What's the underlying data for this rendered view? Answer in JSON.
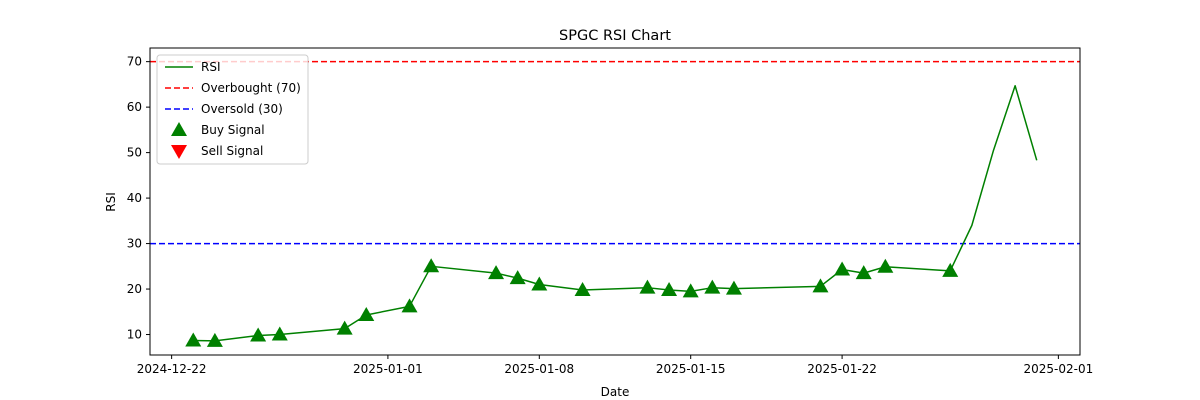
{
  "chart_data": {
    "type": "line",
    "title": "SPGC RSI Chart",
    "xlabel": "Date",
    "ylabel": "RSI",
    "xlim": [
      "2024-12-21",
      "2025-02-02"
    ],
    "ylim": [
      5.5,
      73
    ],
    "x_ticks": [
      "2024-12-22",
      "2025-01-01",
      "2025-01-08",
      "2025-01-15",
      "2025-01-22",
      "2025-02-01"
    ],
    "y_ticks": [
      10,
      20,
      30,
      40,
      50,
      60,
      70
    ],
    "grid": false,
    "legend_position": "top-left",
    "series": [
      {
        "name": "RSI",
        "kind": "line",
        "color": "#008000",
        "points": [
          {
            "date": "2024-12-23",
            "value": 8.7
          },
          {
            "date": "2024-12-24",
            "value": 8.6
          },
          {
            "date": "2024-12-26",
            "value": 9.8
          },
          {
            "date": "2024-12-27",
            "value": 10.0
          },
          {
            "date": "2024-12-30",
            "value": 11.3
          },
          {
            "date": "2024-12-31",
            "value": 14.3
          },
          {
            "date": "2025-01-02",
            "value": 16.2
          },
          {
            "date": "2025-01-03",
            "value": 25.0
          },
          {
            "date": "2025-01-06",
            "value": 23.5
          },
          {
            "date": "2025-01-07",
            "value": 22.4
          },
          {
            "date": "2025-01-08",
            "value": 21.0
          },
          {
            "date": "2025-01-10",
            "value": 19.8
          },
          {
            "date": "2025-01-13",
            "value": 20.3
          },
          {
            "date": "2025-01-14",
            "value": 19.8
          },
          {
            "date": "2025-01-15",
            "value": 19.5
          },
          {
            "date": "2025-01-16",
            "value": 20.3
          },
          {
            "date": "2025-01-17",
            "value": 20.1
          },
          {
            "date": "2025-01-21",
            "value": 20.6
          },
          {
            "date": "2025-01-22",
            "value": 24.3
          },
          {
            "date": "2025-01-23",
            "value": 23.5
          },
          {
            "date": "2025-01-24",
            "value": 24.9
          },
          {
            "date": "2025-01-27",
            "value": 24.0
          },
          {
            "date": "2025-01-28",
            "value": 34.0
          },
          {
            "date": "2025-01-29",
            "value": 50.5
          },
          {
            "date": "2025-01-30",
            "value": 64.7
          },
          {
            "date": "2025-01-31",
            "value": 48.3
          }
        ]
      },
      {
        "name": "Overbought (70)",
        "kind": "hline",
        "value": 70,
        "color": "#ff0000"
      },
      {
        "name": "Oversold (30)",
        "kind": "hline",
        "value": 30,
        "color": "#0000ff"
      },
      {
        "name": "Buy Signal",
        "kind": "marker-up",
        "color": "#008000",
        "dates": [
          "2024-12-23",
          "2024-12-24",
          "2024-12-26",
          "2024-12-27",
          "2024-12-30",
          "2024-12-31",
          "2025-01-02",
          "2025-01-03",
          "2025-01-06",
          "2025-01-07",
          "2025-01-08",
          "2025-01-10",
          "2025-01-13",
          "2025-01-14",
          "2025-01-15",
          "2025-01-16",
          "2025-01-17",
          "2025-01-21",
          "2025-01-22",
          "2025-01-23",
          "2025-01-24",
          "2025-01-27"
        ]
      },
      {
        "name": "Sell Signal",
        "kind": "marker-down",
        "color": "#ff0000",
        "dates": []
      }
    ]
  }
}
